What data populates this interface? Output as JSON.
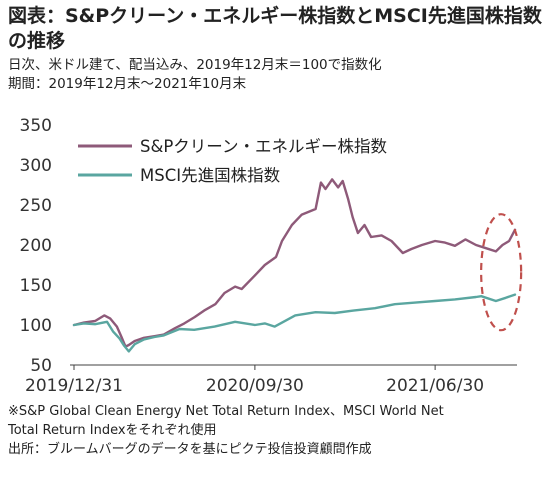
{
  "header": {
    "title": "図表：S&Pクリーン・エネルギー株指数とMSCI先進国株指数の推移",
    "subtitle_lines": [
      "日次、米ドル建て、配当込み、2019年12月末＝100で指数化",
      "期間：2019年12月末～2021年10月末"
    ]
  },
  "notes": [
    "※S&P Global Clean Energy Net Total Return Index、MSCI World Net",
    "Total Return Indexをそれぞれ使用",
    "出所：ブルームバーグのデータを基にピクテ投信投資顧問作成"
  ],
  "chart_data": {
    "type": "line",
    "title": "",
    "xlabel": "",
    "ylabel": "",
    "ylim": [
      50,
      350
    ],
    "yticks": [
      50,
      100,
      150,
      200,
      250,
      300,
      350
    ],
    "xlim": [
      "2019-12-31",
      "2021-10-29"
    ],
    "xtick_labels": [
      "2019/12/31",
      "2020/09/30",
      "2021/06/30"
    ],
    "xticks": [
      "2019-12-31",
      "2020-09-30",
      "2021-06-30"
    ],
    "grid": false,
    "legend_position": "top-left",
    "annotation": "dashed red ellipse around latest values (2021-09 to 2021-10)",
    "series": [
      {
        "name": "S&Pクリーン・エネルギー株指数",
        "color": "#8e5a79",
        "points": [
          [
            "2019-12-31",
            100
          ],
          [
            "2020-01-15",
            103
          ],
          [
            "2020-02-01",
            105
          ],
          [
            "2020-02-15",
            112
          ],
          [
            "2020-02-24",
            108
          ],
          [
            "2020-03-05",
            98
          ],
          [
            "2020-03-12",
            85
          ],
          [
            "2020-03-18",
            73
          ],
          [
            "2020-03-23",
            75
          ],
          [
            "2020-04-01",
            80
          ],
          [
            "2020-04-15",
            84
          ],
          [
            "2020-05-01",
            86
          ],
          [
            "2020-05-15",
            88
          ],
          [
            "2020-06-01",
            96
          ],
          [
            "2020-06-15",
            102
          ],
          [
            "2020-07-01",
            110
          ],
          [
            "2020-07-15",
            118
          ],
          [
            "2020-08-01",
            126
          ],
          [
            "2020-08-15",
            140
          ],
          [
            "2020-08-31",
            148
          ],
          [
            "2020-09-10",
            145
          ],
          [
            "2020-09-30",
            162
          ],
          [
            "2020-10-15",
            175
          ],
          [
            "2020-11-01",
            185
          ],
          [
            "2020-11-10",
            205
          ],
          [
            "2020-11-25",
            225
          ],
          [
            "2020-12-10",
            238
          ],
          [
            "2020-12-31",
            245
          ],
          [
            "2021-01-08",
            278
          ],
          [
            "2021-01-15",
            270
          ],
          [
            "2021-01-25",
            282
          ],
          [
            "2021-02-03",
            272
          ],
          [
            "2021-02-10",
            280
          ],
          [
            "2021-02-18",
            258
          ],
          [
            "2021-02-25",
            235
          ],
          [
            "2021-03-05",
            215
          ],
          [
            "2021-03-15",
            225
          ],
          [
            "2021-03-25",
            210
          ],
          [
            "2021-04-10",
            212
          ],
          [
            "2021-04-25",
            205
          ],
          [
            "2021-05-12",
            190
          ],
          [
            "2021-05-25",
            195
          ],
          [
            "2021-06-10",
            200
          ],
          [
            "2021-06-30",
            205
          ],
          [
            "2021-07-15",
            203
          ],
          [
            "2021-07-30",
            199
          ],
          [
            "2021-08-15",
            207
          ],
          [
            "2021-08-31",
            200
          ],
          [
            "2021-09-15",
            196
          ],
          [
            "2021-09-30",
            192
          ],
          [
            "2021-10-10",
            200
          ],
          [
            "2021-10-20",
            205
          ],
          [
            "2021-10-29",
            219
          ]
        ]
      },
      {
        "name": "MSCI先進国株指数",
        "color": "#5aa6a0",
        "points": [
          [
            "2019-12-31",
            100
          ],
          [
            "2020-01-15",
            102
          ],
          [
            "2020-02-01",
            101
          ],
          [
            "2020-02-19",
            104
          ],
          [
            "2020-02-28",
            92
          ],
          [
            "2020-03-09",
            83
          ],
          [
            "2020-03-16",
            74
          ],
          [
            "2020-03-23",
            67
          ],
          [
            "2020-04-01",
            76
          ],
          [
            "2020-04-15",
            82
          ],
          [
            "2020-05-01",
            85
          ],
          [
            "2020-05-15",
            87
          ],
          [
            "2020-06-08",
            95
          ],
          [
            "2020-06-30",
            94
          ],
          [
            "2020-07-31",
            98
          ],
          [
            "2020-08-31",
            104
          ],
          [
            "2020-09-30",
            100
          ],
          [
            "2020-10-15",
            102
          ],
          [
            "2020-10-30",
            98
          ],
          [
            "2020-11-30",
            112
          ],
          [
            "2020-12-31",
            116
          ],
          [
            "2021-01-29",
            115
          ],
          [
            "2021-02-26",
            118
          ],
          [
            "2021-03-31",
            121
          ],
          [
            "2021-04-30",
            126
          ],
          [
            "2021-05-31",
            128
          ],
          [
            "2021-06-30",
            130
          ],
          [
            "2021-07-30",
            132
          ],
          [
            "2021-08-31",
            135
          ],
          [
            "2021-09-08",
            136
          ],
          [
            "2021-09-30",
            130
          ],
          [
            "2021-10-15",
            134
          ],
          [
            "2021-10-29",
            138
          ]
        ]
      }
    ]
  },
  "colors": {
    "annotation": "#c0504d",
    "axis": "#404040"
  }
}
